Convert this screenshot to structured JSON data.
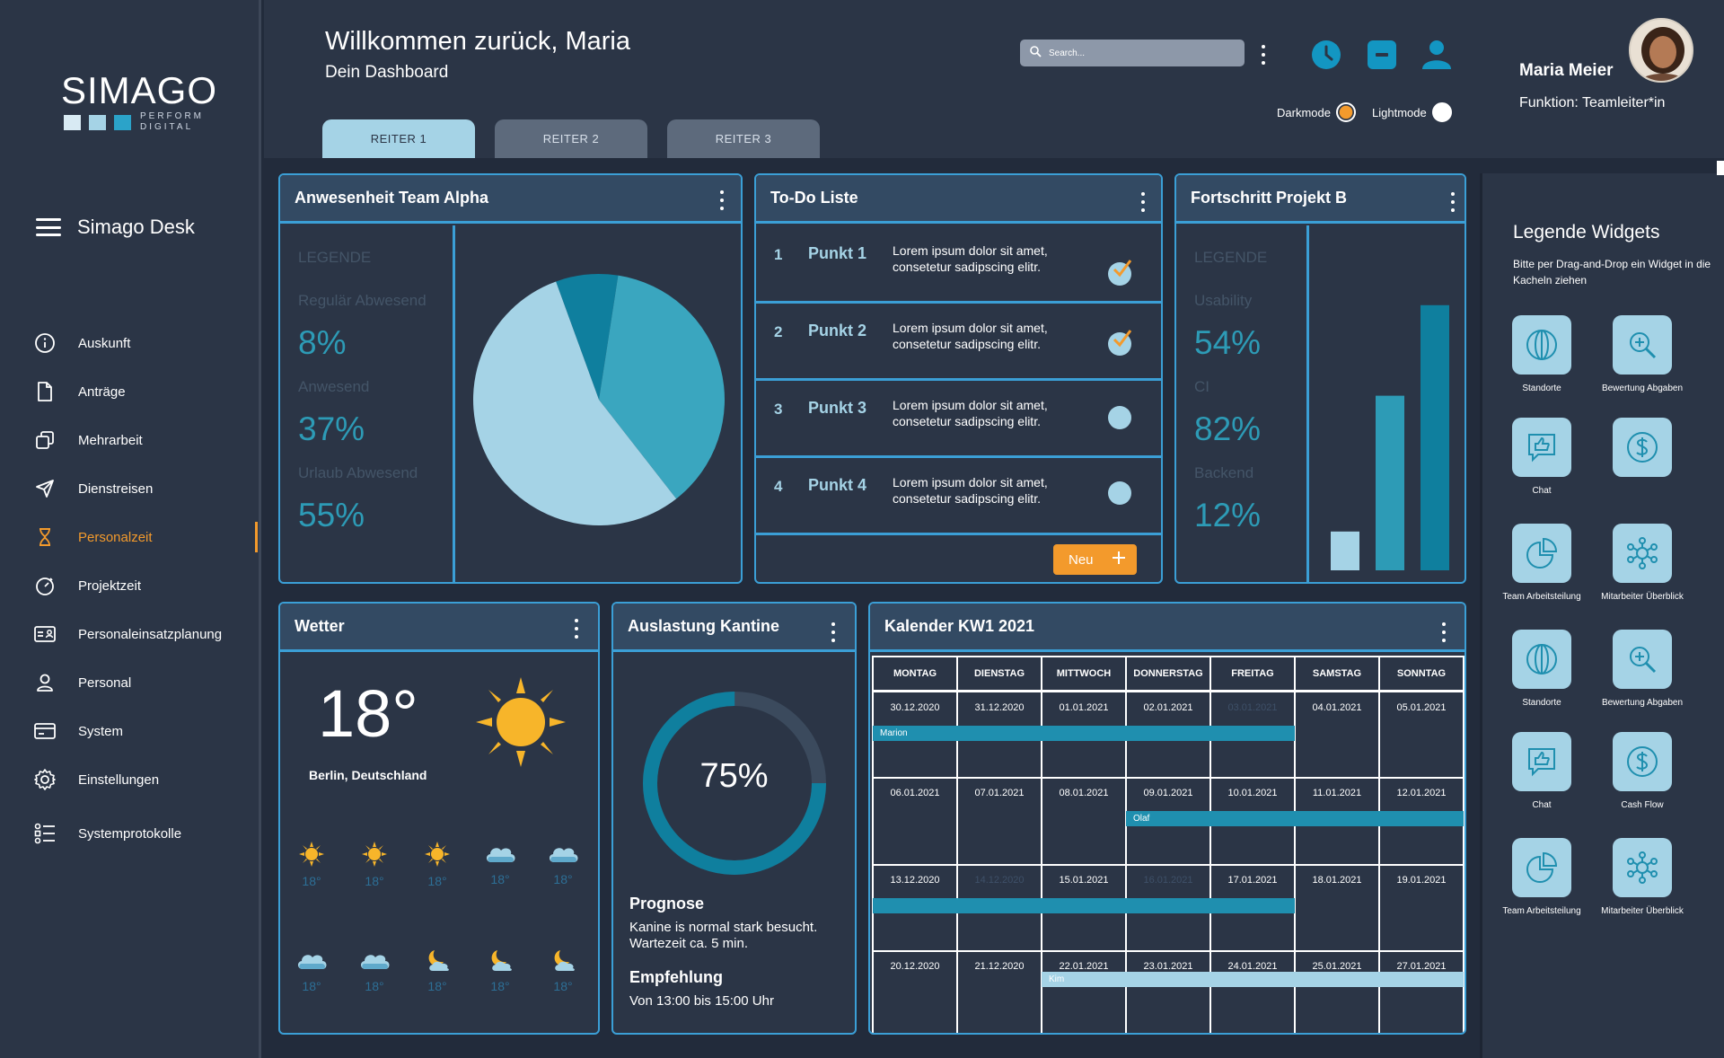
{
  "sidebar": {
    "logo": {
      "text": "SIMAGO",
      "sub_line1": "PERFORM",
      "sub_line2": "DIGITAL",
      "squares": [
        "#d8eaf3",
        "#a5d3e6",
        "#2ba3c9"
      ]
    },
    "app_name": "Simago Desk",
    "items": [
      {
        "label": "Auskunft",
        "icon": "info-icon"
      },
      {
        "label": "Anträge",
        "icon": "document-icon"
      },
      {
        "label": "Mehrarbeit",
        "icon": "copy-icon"
      },
      {
        "label": "Dienstreisen",
        "icon": "send-icon"
      },
      {
        "label": "Personalzeit",
        "icon": "hourglass-icon",
        "active": true
      },
      {
        "label": "Projektzeit",
        "icon": "timer-icon"
      },
      {
        "label": "Personaleinsatzplanung",
        "icon": "id-card-icon"
      },
      {
        "label": "Personal",
        "icon": "user-icon"
      },
      {
        "label": "System",
        "icon": "card-icon"
      },
      {
        "label": "Einstellungen",
        "icon": "gear-icon"
      },
      {
        "label": "Systemprotokolle",
        "icon": "list-icon"
      }
    ]
  },
  "header": {
    "welcome": "Willkommen zurück, Maria",
    "subtitle": "Dein Dashboard",
    "search_placeholder": "Search...",
    "user_name": "Maria Meier",
    "user_role": "Funktion: Teamleiter*in",
    "darkmode_label": "Darkmode",
    "lightmode_label": "Lightmode",
    "tabs": [
      "REITER 1",
      "REITER 2",
      "REITER 3"
    ]
  },
  "colors": {
    "accent": "#3b9fd6",
    "orange": "#f39a2c",
    "light_blue": "#a5d3e6",
    "teal": "#2d9bb6",
    "dark_teal": "#0f7f9e",
    "bg": "#222b3b",
    "card": "#2b3546"
  },
  "attendance": {
    "title": "Anwesenheit Team Alpha",
    "legend_title": "LEGENDE",
    "items": [
      {
        "label": "Regulär Abwesend",
        "value": "8%"
      },
      {
        "label": "Anwesend",
        "value": "37%"
      },
      {
        "label": "Urlaub Abwesend",
        "value": "55%"
      }
    ]
  },
  "todo": {
    "title": "To-Do Liste",
    "items": [
      {
        "num": "1",
        "title": "Punkt 1",
        "text": "Lorem ipsum dolor sit amet, consetetur sadipscing elitr.",
        "done": true
      },
      {
        "num": "2",
        "title": "Punkt 2",
        "text": "Lorem ipsum dolor sit amet, consetetur sadipscing elitr.",
        "done": true
      },
      {
        "num": "3",
        "title": "Punkt 3",
        "text": "Lorem ipsum dolor sit amet, consetetur sadipscing elitr.",
        "done": false
      },
      {
        "num": "4",
        "title": "Punkt 4",
        "text": "Lorem ipsum dolor sit amet, consetetur sadipscing elitr.",
        "done": false
      }
    ],
    "new_label": "Neu"
  },
  "progress": {
    "title": "Fortschritt Projekt B",
    "legend_title": "LEGENDE",
    "items": [
      {
        "label": "Usability",
        "value": "54%"
      },
      {
        "label": "CI",
        "value": "82%"
      },
      {
        "label": "Backend",
        "value": "12%"
      }
    ]
  },
  "weather": {
    "title": "Wetter",
    "temp": "18°",
    "city": "Berlin, Deutschland",
    "forecast_row1": [
      {
        "icon": "sun-icon",
        "temp": "18°"
      },
      {
        "icon": "sun-icon",
        "temp": "18°"
      },
      {
        "icon": "sun-icon",
        "temp": "18°"
      },
      {
        "icon": "cloud-icon",
        "temp": "18°"
      },
      {
        "icon": "cloud-icon",
        "temp": "18°"
      }
    ],
    "forecast_row2": [
      {
        "icon": "cloud-icon",
        "temp": "18°"
      },
      {
        "icon": "cloud-icon",
        "temp": "18°"
      },
      {
        "icon": "moon-cloud-icon",
        "temp": "18°"
      },
      {
        "icon": "moon-cloud-icon",
        "temp": "18°"
      },
      {
        "icon": "moon-cloud-icon",
        "temp": "18°"
      }
    ]
  },
  "canteen": {
    "title": "Auslastung Kantine",
    "percent_label": "75%",
    "percent": 0.75,
    "forecast_title": "Prognose",
    "forecast_text": "Kanine is normal stark besucht. Wartezeit ca. 5 min.",
    "recommend_title": "Empfehlung",
    "recommend_text": "Von 13:00 bis 15:00 Uhr"
  },
  "calendar": {
    "title": "Kalender KW1 2021",
    "days": [
      "MONTAG",
      "DIENSTAG",
      "MITTWOCH",
      "DONNERSTAG",
      "FREITAG",
      "SAMSTAG",
      "SONNTAG"
    ],
    "weeks": [
      [
        "30.12.2020",
        "31.12.2020",
        "01.01.2021",
        "02.01.2021",
        "03.01.2021",
        "04.01.2021",
        "05.01.2021"
      ],
      [
        "06.01.2021",
        "07.01.2021",
        "08.01.2021",
        "09.01.2021",
        "10.01.2021",
        "11.01.2021",
        "12.01.2021"
      ],
      [
        "13.12.2020",
        "14.12.2020",
        "15.01.2021",
        "16.01.2021",
        "17.01.2021",
        "18.01.2021",
        "19.01.2021"
      ],
      [
        "20.12.2020",
        "21.12.2020",
        "22.01.2021",
        "23.01.2021",
        "24.01.2021",
        "25.01.2021",
        "27.01.2021"
      ]
    ],
    "events": [
      "Marion",
      "Olaf",
      "",
      "Kim"
    ]
  },
  "widgets_panel": {
    "title": "Legende Widgets",
    "subtitle": "Bitte per Drag-and-Drop ein Widget in die Kacheln ziehen",
    "widgets": [
      {
        "label": "Standorte",
        "icon": "globe-icon"
      },
      {
        "label": "Bewertung Abgaben",
        "icon": "magnifier-icon"
      },
      {
        "label": "Chat",
        "icon": "thumbs-up-chat-icon"
      },
      {
        "label": "",
        "icon": "dollar-icon"
      },
      {
        "label": "Team Arbeitsteilung",
        "icon": "pie-chart-icon"
      },
      {
        "label": "Mitarbeiter Überblick",
        "icon": "team-network-icon"
      },
      {
        "label": "Standorte",
        "icon": "globe-icon"
      },
      {
        "label": "Bewertung Abgaben",
        "icon": "magnifier-icon"
      },
      {
        "label": "Chat",
        "icon": "thumbs-up-chat-icon"
      },
      {
        "label": "Cash Flow",
        "icon": "dollar-icon"
      },
      {
        "label": "Team Arbeitsteilung",
        "icon": "pie-chart-icon"
      },
      {
        "label": "Mitarbeiter Überblick",
        "icon": "team-network-icon"
      }
    ]
  }
}
